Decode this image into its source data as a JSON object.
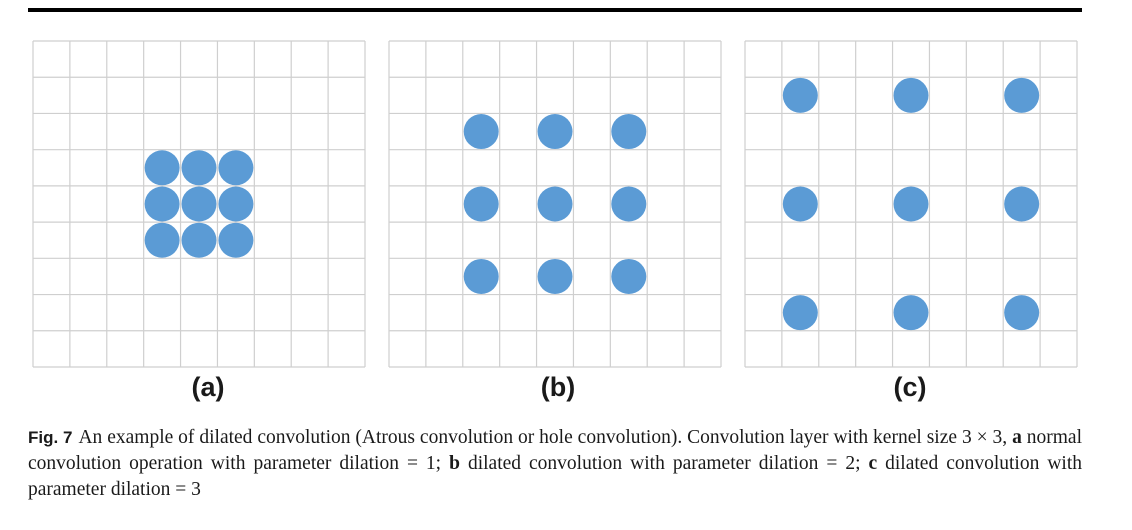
{
  "colors": {
    "dot": "#5b9bd5",
    "grid": "#cfcfcf",
    "rule": "#000000"
  },
  "panels": [
    {
      "label": "(a)",
      "dilation": 1
    },
    {
      "label": "(b)",
      "dilation": 2
    },
    {
      "label": "(c)",
      "dilation": 3
    }
  ],
  "caption": {
    "fig_label": "Fig. 7",
    "text_1": "An example of dilated convolution (Atrous convolution or hole convolution). Convolution layer with kernel size 3 × 3, ",
    "a_letter": "a",
    "text_2": " normal convolution operation with parameter dilation = 1; ",
    "b_letter": "b",
    "text_3": " dilated convolution with parameter dilation = 2; ",
    "c_letter": "c",
    "text_4": " dilated convolution with parameter dilation = 3"
  }
}
